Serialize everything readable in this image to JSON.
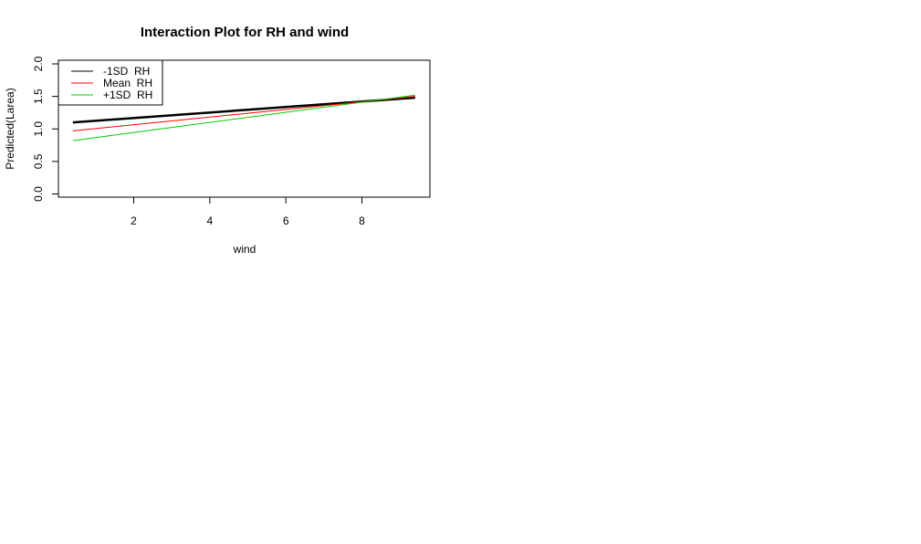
{
  "chart_data": {
    "type": "line",
    "title": "Interaction Plot for RH  and wind",
    "xlabel": "wind",
    "ylabel": "Predicted(Larea)",
    "xlim": [
      0,
      10
    ],
    "ylim": [
      0.0,
      2.0
    ],
    "x_ticks": [
      "2",
      "4",
      "6",
      "8"
    ],
    "y_ticks": [
      "0.0",
      "0.5",
      "1.0",
      "1.5",
      "2.0"
    ],
    "legend_position": "top-left",
    "series": [
      {
        "name": "-1SD  RH",
        "color": "#000000",
        "x": [
          0.4,
          9.4
        ],
        "y": [
          1.1,
          1.48
        ]
      },
      {
        "name": "Mean  RH",
        "color": "#ff0000",
        "x": [
          0.4,
          9.4
        ],
        "y": [
          0.97,
          1.5
        ]
      },
      {
        "name": "+1SD  RH",
        "color": "#00cd00",
        "x": [
          0.4,
          9.4
        ],
        "y": [
          0.82,
          1.52
        ]
      }
    ]
  }
}
